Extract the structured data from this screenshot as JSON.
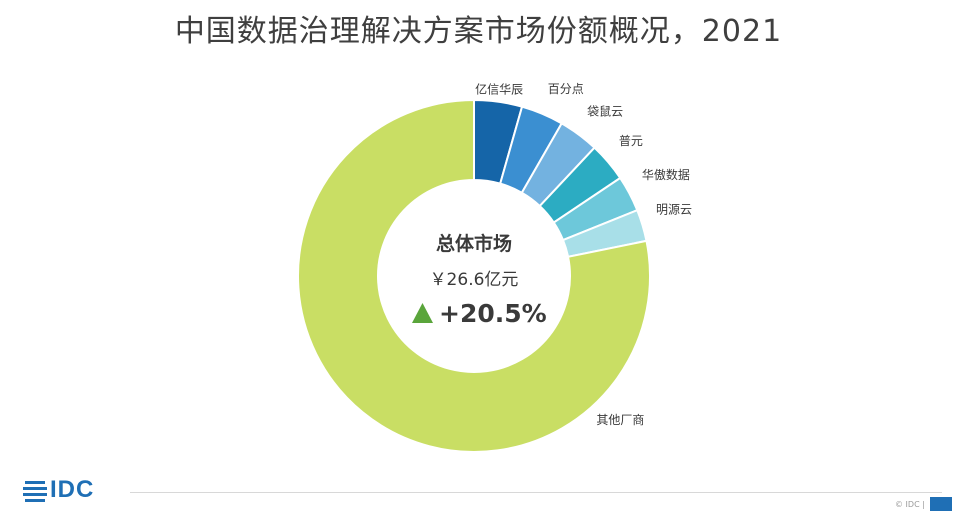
{
  "title": "中国数据治理解决方案市场份额概况，2021",
  "center": {
    "title": "总体市场",
    "value": "￥26.6亿元",
    "growth": "+20.5%",
    "growth_color": "#5aa53b"
  },
  "chart_data": {
    "type": "pie",
    "title": "中国数据治理解决方案市场份额概况，2021",
    "donut": true,
    "slices": [
      {
        "label": "亿信华辰",
        "value": 4.4,
        "color": "#1565a8"
      },
      {
        "label": "百分点",
        "value": 3.9,
        "color": "#3b8fd1"
      },
      {
        "label": "袋鼠云",
        "value": 3.7,
        "color": "#73b2e0"
      },
      {
        "label": "普元",
        "value": 3.6,
        "color": "#2cacc2"
      },
      {
        "label": "华傲数据",
        "value": 3.3,
        "color": "#6dc8da"
      },
      {
        "label": "明源云",
        "value": 2.9,
        "color": "#a8dfe8"
      },
      {
        "label": "其他厂商",
        "value": 78.2,
        "color": "#c9de64"
      }
    ]
  },
  "footer": {
    "logo": "IDC",
    "copyright": "© IDC |",
    "brand_color": "#1f6fb5"
  }
}
